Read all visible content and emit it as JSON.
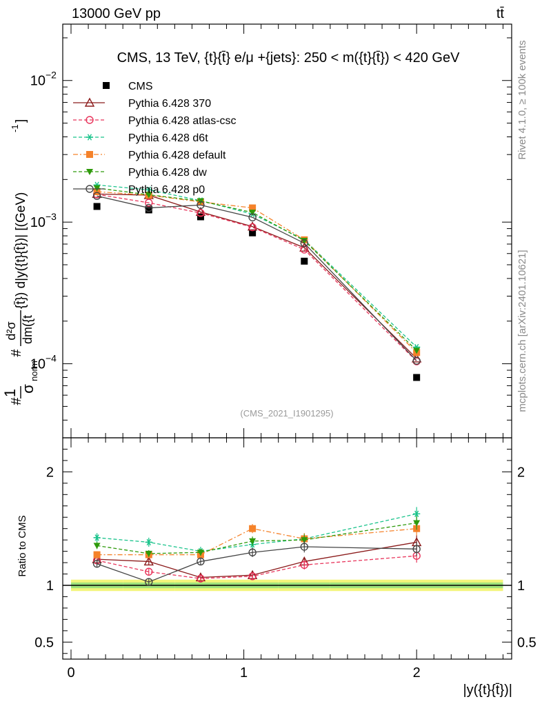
{
  "header": {
    "energy_label": "13000 GeV pp",
    "process_label": "tt̄"
  },
  "side_labels": {
    "rivet": "Rivet 4.1.0, ≥ 100k events",
    "source": "mcplots.cern.ch [arXiv:2401.10621]"
  },
  "chart_data": {
    "type": "line",
    "title": "CMS, 13 TeV, {t}{t̄} e/μ +{jets}: 250 < m({t}{t̄}) < 420 GeV",
    "watermark": "(CMS_2021_I1901295)",
    "ylabel": "#1/σ_norm #d²σ/dm({t}{t̄}) d|y({t}{t̄})| [(GeV)⁻¹]",
    "ylabel_parts": {
      "one": "1",
      "sigma": "σ",
      "norm": "norm",
      "d2sigma": "d²σ",
      "dm": "dm({t",
      "rest": "{t̄}) d|y({t}{t̄})| [(GeV)",
      "exp": "-1",
      "close": "]",
      "hash": "#"
    },
    "xlabel": "|y({t}{t̄})|",
    "ratio_ylabel": "Ratio to CMS",
    "xlim": [
      0,
      2.55
    ],
    "ylim": [
      3e-05,
      0.025
    ],
    "yscale": "log",
    "ratio_ylim": [
      0.35,
      2.3
    ],
    "x_ticks": [
      0,
      1,
      2
    ],
    "x_tick_labels": [
      "0",
      "1",
      "2"
    ],
    "y_ticks": [
      0.0001,
      0.001,
      0.01
    ],
    "y_tick_labels": [
      {
        "mant": "10",
        "exp": "−4"
      },
      {
        "mant": "10",
        "exp": "−3"
      },
      {
        "mant": "10",
        "exp": "−2"
      }
    ],
    "ratio_ticks": [
      0.5,
      1,
      2
    ],
    "ratio_tick_labels": [
      "0.5",
      "1",
      "2"
    ],
    "x": [
      0.15,
      0.45,
      0.75,
      1.05,
      1.35,
      2.0
    ],
    "bin_edges": [
      0,
      0.3,
      0.6,
      0.9,
      1.2,
      1.5,
      2.5
    ],
    "data_band": {
      "inner_green": 0.025,
      "outer_yellow": 0.05
    },
    "series": [
      {
        "name": "CMS",
        "style": "data",
        "color": "#000000",
        "marker": "filled-square",
        "values": [
          0.00129,
          0.00122,
          0.00109,
          0.00084,
          0.00053,
          8e-05
        ],
        "ratio": [
          1,
          1,
          1,
          1,
          1,
          1
        ]
      },
      {
        "name": "Pythia 6.428 370",
        "style": "solid",
        "color": "#8b1a1a",
        "marker": "open-triangle",
        "values": [
          0.00158,
          0.00155,
          0.00118,
          0.00093,
          0.00066,
          0.000109
        ],
        "ratio": [
          1.23,
          1.21,
          1.07,
          1.09,
          1.21,
          1.38
        ],
        "ratio_err": [
          0.03,
          0.03,
          0.03,
          0.03,
          0.04,
          0.06
        ]
      },
      {
        "name": "Pythia 6.428 atlas-csc",
        "style": "dashed",
        "color": "#e8335a",
        "marker": "open-circle",
        "values": [
          0.00157,
          0.00137,
          0.00116,
          0.00092,
          0.00064,
          0.000104
        ],
        "ratio": [
          1.22,
          1.12,
          1.06,
          1.08,
          1.18,
          1.26
        ],
        "ratio_err": [
          0.03,
          0.03,
          0.03,
          0.03,
          0.04,
          0.06
        ]
      },
      {
        "name": "Pythia 6.428 d6t",
        "style": "dashed",
        "color": "#19c38b",
        "marker": "asterisk",
        "values": [
          0.00183,
          0.00169,
          0.00142,
          0.00114,
          0.00075,
          0.000131
        ],
        "ratio": [
          1.42,
          1.38,
          1.3,
          1.36,
          1.41,
          1.63
        ],
        "ratio_err": [
          0.04,
          0.04,
          0.04,
          0.04,
          0.05,
          0.06
        ]
      },
      {
        "name": "Pythia 6.428 default",
        "style": "dashdot",
        "color": "#f5822a",
        "marker": "filled-square",
        "values": [
          0.00164,
          0.00155,
          0.00139,
          0.00126,
          0.00075,
          0.00012
        ],
        "ratio": [
          1.27,
          1.27,
          1.27,
          1.5,
          1.41,
          1.5
        ],
        "ratio_err": [
          0.03,
          0.03,
          0.03,
          0.04,
          0.05,
          0.06
        ]
      },
      {
        "name": "Pythia 6.428 dw",
        "style": "dashed",
        "color": "#2e9a0a",
        "marker": "filled-triangle-down",
        "values": [
          0.00174,
          0.00156,
          0.00141,
          0.00117,
          0.00074,
          0.000124
        ],
        "ratio": [
          1.35,
          1.28,
          1.29,
          1.39,
          1.4,
          1.55
        ],
        "ratio_err": [
          0.03,
          0.03,
          0.03,
          0.04,
          0.05,
          0.06
        ]
      },
      {
        "name": "Pythia 6.428 p0",
        "style": "solid",
        "color": "#444444",
        "marker": "open-circle",
        "values": [
          0.00153,
          0.00126,
          0.00132,
          0.00108,
          0.00071,
          0.000105
        ],
        "ratio": [
          1.19,
          1.03,
          1.21,
          1.29,
          1.34,
          1.32
        ],
        "ratio_err": [
          0.03,
          0.03,
          0.03,
          0.04,
          0.05,
          0.06
        ]
      }
    ]
  }
}
